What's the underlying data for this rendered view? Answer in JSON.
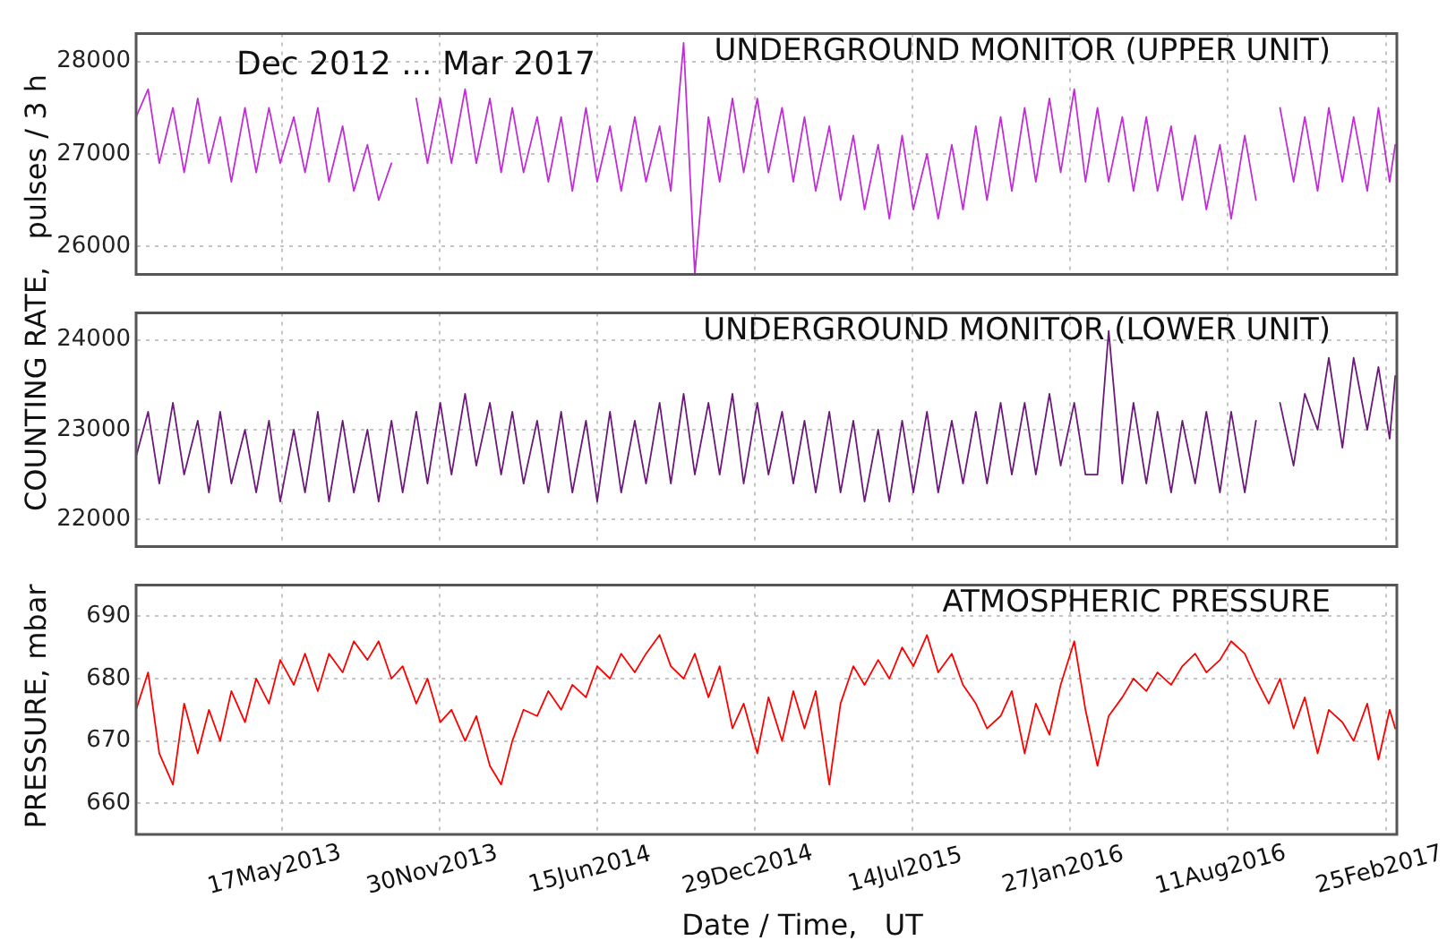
{
  "chart_data": [
    {
      "type": "line",
      "title": "UNDERGROUND MONITOR (UPPER UNIT)",
      "ylabel": "COUNTING RATE,   pulses / 3 h",
      "annotations": [
        "Dec 2012 ... Mar 2017"
      ],
      "tick_labels": "y",
      "grid": true,
      "xlim": [
        "2012-11-16",
        "2017-03-10"
      ],
      "ylim": [
        25700,
        28300
      ],
      "yticks": [
        26000,
        27000,
        28000
      ],
      "xticks": [
        {
          "value": "2013-05-17",
          "label": null
        },
        {
          "value": "2013-11-30",
          "label": null
        },
        {
          "value": "2014-06-15",
          "label": null
        },
        {
          "value": "2014-12-29",
          "label": null
        },
        {
          "value": "2015-07-14",
          "label": null
        },
        {
          "value": "2016-01-27",
          "label": null
        },
        {
          "value": "2016-08-11",
          "label": null
        },
        {
          "value": "2017-02-25",
          "label": null
        }
      ],
      "x": [
        "2012-11-16",
        "2012-12-01",
        "2012-12-15",
        "2013-01-01",
        "2013-01-15",
        "2013-02-01",
        "2013-02-15",
        "2013-03-01",
        "2013-03-15",
        "2013-04-01",
        "2013-04-15",
        "2013-05-01",
        "2013-05-15",
        "2013-06-01",
        "2013-06-15",
        "2013-07-01",
        "2013-07-15",
        "2013-08-01",
        "2013-08-15",
        "2013-09-01",
        "2013-09-15",
        "2013-10-01",
        "2013-10-15",
        "2013-11-01",
        "2013-11-15",
        "2013-12-01",
        "2013-12-15",
        "2014-01-01",
        "2014-01-15",
        "2014-02-01",
        "2014-02-15",
        "2014-03-01",
        "2014-03-15",
        "2014-04-01",
        "2014-04-15",
        "2014-05-01",
        "2014-05-15",
        "2014-06-01",
        "2014-06-15",
        "2014-07-01",
        "2014-07-15",
        "2014-08-01",
        "2014-08-15",
        "2014-09-01",
        "2014-09-15",
        "2014-10-01",
        "2014-10-15",
        "2014-11-01",
        "2014-11-15",
        "2014-12-01",
        "2014-12-15",
        "2015-01-01",
        "2015-01-15",
        "2015-02-01",
        "2015-02-15",
        "2015-03-01",
        "2015-03-15",
        "2015-04-01",
        "2015-04-15",
        "2015-05-01",
        "2015-05-15",
        "2015-06-01",
        "2015-06-15",
        "2015-07-01",
        "2015-07-15",
        "2015-08-01",
        "2015-08-15",
        "2015-09-01",
        "2015-09-15",
        "2015-10-01",
        "2015-10-15",
        "2015-11-01",
        "2015-11-15",
        "2015-12-01",
        "2015-12-15",
        "2016-01-01",
        "2016-01-15",
        "2016-02-01",
        "2016-02-15",
        "2016-03-01",
        "2016-03-15",
        "2016-04-01",
        "2016-04-15",
        "2016-05-01",
        "2016-05-15",
        "2016-06-01",
        "2016-06-15",
        "2016-07-01",
        "2016-07-15",
        "2016-08-01",
        "2016-08-15",
        "2016-09-01",
        "2016-09-15",
        "2016-10-01",
        "2016-10-15",
        "2016-11-01",
        "2016-11-15",
        "2016-12-01",
        "2016-12-15",
        "2017-01-01",
        "2017-01-15",
        "2017-02-01",
        "2017-02-15",
        "2017-03-01",
        "2017-03-08"
      ],
      "series": [
        {
          "color": "#c22ed6",
          "values": [
            27400,
            27700,
            26900,
            27500,
            26800,
            27600,
            26900,
            27400,
            26700,
            27500,
            26800,
            27500,
            26900,
            27400,
            26800,
            27500,
            26700,
            27300,
            26600,
            27100,
            26500,
            26900,
            null,
            27600,
            26900,
            27600,
            26900,
            27700,
            26900,
            27600,
            26800,
            27500,
            26800,
            27400,
            26700,
            27400,
            26600,
            27500,
            26700,
            27300,
            26600,
            27400,
            26700,
            27300,
            26600,
            28200,
            25700,
            27400,
            26700,
            27600,
            26800,
            27600,
            26800,
            27500,
            26700,
            27400,
            26600,
            27300,
            26500,
            27200,
            26400,
            27100,
            26300,
            27200,
            26400,
            27000,
            26300,
            27100,
            26400,
            27300,
            26500,
            27400,
            26600,
            27500,
            26700,
            27600,
            26800,
            27700,
            26700,
            27500,
            26700,
            27400,
            26600,
            27400,
            26600,
            27300,
            26500,
            27200,
            26400,
            27100,
            26300,
            27200,
            26500,
            null,
            27500,
            26700,
            27400,
            26600,
            27500,
            26700,
            27400,
            26600,
            27500,
            26700,
            27100
          ]
        }
      ]
    },
    {
      "type": "line",
      "title": "UNDERGROUND MONITOR (LOWER UNIT)",
      "tick_labels": "y",
      "grid": true,
      "xlim": [
        "2012-11-16",
        "2017-03-10"
      ],
      "ylim": [
        21700,
        24300
      ],
      "yticks": [
        22000,
        23000,
        24000
      ],
      "xticks": [
        {
          "value": "2013-05-17",
          "label": null
        },
        {
          "value": "2013-11-30",
          "label": null
        },
        {
          "value": "2014-06-15",
          "label": null
        },
        {
          "value": "2014-12-29",
          "label": null
        },
        {
          "value": "2015-07-14",
          "label": null
        },
        {
          "value": "2016-01-27",
          "label": null
        },
        {
          "value": "2016-08-11",
          "label": null
        },
        {
          "value": "2017-02-25",
          "label": null
        }
      ],
      "x": [
        "2012-11-16",
        "2012-12-01",
        "2012-12-15",
        "2013-01-01",
        "2013-01-15",
        "2013-02-01",
        "2013-02-15",
        "2013-03-01",
        "2013-03-15",
        "2013-04-01",
        "2013-04-15",
        "2013-05-01",
        "2013-05-15",
        "2013-06-01",
        "2013-06-15",
        "2013-07-01",
        "2013-07-15",
        "2013-08-01",
        "2013-08-15",
        "2013-09-01",
        "2013-09-15",
        "2013-10-01",
        "2013-10-15",
        "2013-11-01",
        "2013-11-15",
        "2013-12-01",
        "2013-12-15",
        "2014-01-01",
        "2014-01-15",
        "2014-02-01",
        "2014-02-15",
        "2014-03-01",
        "2014-03-15",
        "2014-04-01",
        "2014-04-15",
        "2014-05-01",
        "2014-05-15",
        "2014-06-01",
        "2014-06-15",
        "2014-07-01",
        "2014-07-15",
        "2014-08-01",
        "2014-08-15",
        "2014-09-01",
        "2014-09-15",
        "2014-10-01",
        "2014-10-15",
        "2014-11-01",
        "2014-11-15",
        "2014-12-01",
        "2014-12-15",
        "2015-01-01",
        "2015-01-15",
        "2015-02-01",
        "2015-02-15",
        "2015-03-01",
        "2015-03-15",
        "2015-04-01",
        "2015-04-15",
        "2015-05-01",
        "2015-05-15",
        "2015-06-01",
        "2015-06-15",
        "2015-07-01",
        "2015-07-15",
        "2015-08-01",
        "2015-08-15",
        "2015-09-01",
        "2015-09-15",
        "2015-10-01",
        "2015-10-15",
        "2015-11-01",
        "2015-11-15",
        "2015-12-01",
        "2015-12-15",
        "2016-01-01",
        "2016-01-15",
        "2016-02-01",
        "2016-02-15",
        "2016-03-01",
        "2016-03-15",
        "2016-04-01",
        "2016-04-15",
        "2016-05-01",
        "2016-05-15",
        "2016-06-01",
        "2016-06-15",
        "2016-07-01",
        "2016-07-15",
        "2016-08-01",
        "2016-08-15",
        "2016-09-01",
        "2016-09-15",
        "2016-10-01",
        "2016-10-15",
        "2016-11-01",
        "2016-11-15",
        "2016-12-01",
        "2016-12-15",
        "2017-01-01",
        "2017-01-15",
        "2017-02-01",
        "2017-02-15",
        "2017-03-01",
        "2017-03-08"
      ],
      "series": [
        {
          "color": "#6b1a7a",
          "values": [
            22700,
            23200,
            22400,
            23300,
            22500,
            23100,
            22300,
            23200,
            22400,
            23000,
            22300,
            23100,
            22200,
            23000,
            22300,
            23200,
            22200,
            23100,
            22300,
            23000,
            22200,
            23100,
            22300,
            23200,
            22400,
            23300,
            22500,
            23400,
            22600,
            23300,
            22500,
            23200,
            22400,
            23100,
            22300,
            23200,
            22300,
            23100,
            22200,
            23200,
            22300,
            23100,
            22400,
            23300,
            22400,
            23400,
            22500,
            23300,
            22500,
            23400,
            22400,
            23300,
            22500,
            23200,
            22400,
            23100,
            22300,
            23200,
            22300,
            23100,
            22200,
            23000,
            22200,
            23100,
            22300,
            23200,
            22300,
            23100,
            22400,
            23200,
            22400,
            23300,
            22500,
            23300,
            22500,
            23400,
            22600,
            23300,
            22500,
            22500,
            24100,
            22400,
            23300,
            22400,
            23200,
            22300,
            23100,
            22400,
            23200,
            22300,
            23200,
            22300,
            23100,
            null,
            23300,
            22600,
            23400,
            23000,
            23800,
            22800,
            23800,
            23000,
            23700,
            22900,
            23600
          ]
        }
      ]
    },
    {
      "type": "line",
      "title": "ATMOSPHERIC PRESSURE",
      "xlabel": "Date / Time,   UT",
      "ylabel": "PRESSURE, mbar",
      "grid": true,
      "xlim": [
        "2012-11-16",
        "2017-03-10"
      ],
      "ylim": [
        655,
        695
      ],
      "yticks": [
        660,
        670,
        680,
        690
      ],
      "xticks": [
        {
          "value": "2013-05-17",
          "label": "17May2013"
        },
        {
          "value": "2013-11-30",
          "label": "30Nov2013"
        },
        {
          "value": "2014-06-15",
          "label": "15Jun2014"
        },
        {
          "value": "2014-12-29",
          "label": "29Dec2014"
        },
        {
          "value": "2015-07-14",
          "label": "14Jul2015"
        },
        {
          "value": "2016-01-27",
          "label": "27Jan2016"
        },
        {
          "value": "2016-08-11",
          "label": "11Aug2016"
        },
        {
          "value": "2017-02-25",
          "label": "25Feb2017"
        }
      ],
      "x": [
        "2012-11-16",
        "2012-12-01",
        "2012-12-15",
        "2013-01-01",
        "2013-01-15",
        "2013-02-01",
        "2013-02-15",
        "2013-03-01",
        "2013-03-15",
        "2013-04-01",
        "2013-04-15",
        "2013-05-01",
        "2013-05-15",
        "2013-06-01",
        "2013-06-15",
        "2013-07-01",
        "2013-07-15",
        "2013-08-01",
        "2013-08-15",
        "2013-09-01",
        "2013-09-15",
        "2013-10-01",
        "2013-10-15",
        "2013-11-01",
        "2013-11-15",
        "2013-12-01",
        "2013-12-15",
        "2014-01-01",
        "2014-01-15",
        "2014-02-01",
        "2014-02-15",
        "2014-03-01",
        "2014-03-15",
        "2014-04-01",
        "2014-04-15",
        "2014-05-01",
        "2014-05-15",
        "2014-06-01",
        "2014-06-15",
        "2014-07-01",
        "2014-07-15",
        "2014-08-01",
        "2014-08-15",
        "2014-09-01",
        "2014-09-15",
        "2014-10-01",
        "2014-10-15",
        "2014-11-01",
        "2014-11-15",
        "2014-12-01",
        "2014-12-15",
        "2015-01-01",
        "2015-01-15",
        "2015-02-01",
        "2015-02-15",
        "2015-03-01",
        "2015-03-15",
        "2015-04-01",
        "2015-04-15",
        "2015-05-01",
        "2015-05-15",
        "2015-06-01",
        "2015-06-15",
        "2015-07-01",
        "2015-07-15",
        "2015-08-01",
        "2015-08-15",
        "2015-09-01",
        "2015-09-15",
        "2015-10-01",
        "2015-10-15",
        "2015-11-01",
        "2015-11-15",
        "2015-12-01",
        "2015-12-15",
        "2016-01-01",
        "2016-01-15",
        "2016-02-01",
        "2016-02-15",
        "2016-03-01",
        "2016-03-15",
        "2016-04-01",
        "2016-04-15",
        "2016-05-01",
        "2016-05-15",
        "2016-06-01",
        "2016-06-15",
        "2016-07-01",
        "2016-07-15",
        "2016-08-01",
        "2016-08-15",
        "2016-09-01",
        "2016-09-15",
        "2016-10-01",
        "2016-10-15",
        "2016-11-01",
        "2016-11-15",
        "2016-12-01",
        "2016-12-15",
        "2017-01-01",
        "2017-01-15",
        "2017-02-01",
        "2017-02-15",
        "2017-03-01",
        "2017-03-08"
      ],
      "series": [
        {
          "color": "#ff0000",
          "values": [
            675,
            681,
            668,
            663,
            676,
            668,
            675,
            670,
            678,
            673,
            680,
            676,
            683,
            679,
            684,
            678,
            684,
            681,
            686,
            683,
            686,
            680,
            682,
            676,
            680,
            673,
            675,
            670,
            674,
            666,
            663,
            670,
            675,
            674,
            678,
            675,
            679,
            677,
            682,
            680,
            684,
            681,
            684,
            687,
            682,
            680,
            684,
            677,
            682,
            672,
            676,
            668,
            677,
            670,
            678,
            672,
            678,
            663,
            676,
            682,
            679,
            683,
            680,
            685,
            682,
            687,
            681,
            684,
            679,
            676,
            672,
            674,
            678,
            668,
            676,
            671,
            679,
            686,
            675,
            666,
            674,
            677,
            680,
            678,
            681,
            679,
            682,
            684,
            681,
            683,
            686,
            684,
            680,
            676,
            680,
            672,
            677,
            668,
            675,
            673,
            670,
            676,
            667,
            675,
            672
          ]
        }
      ]
    }
  ]
}
